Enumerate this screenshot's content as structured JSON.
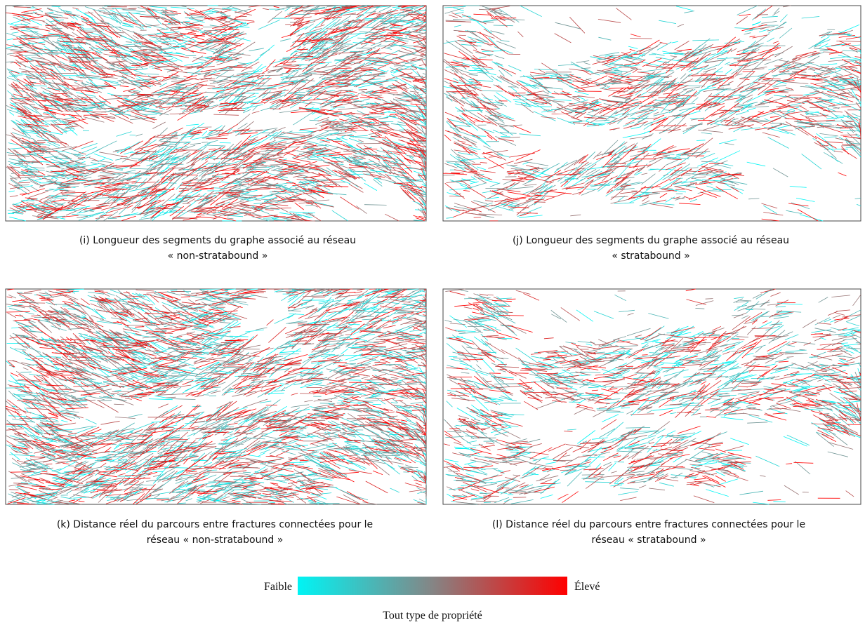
{
  "panels": [
    {
      "caption": [
        "(i) Longueur des segments du graphe associé au réseau",
        "« non-stratabound »"
      ]
    },
    {
      "caption": [
        "(j) Longueur des segments du graphe associé au réseau",
        "« stratabound »"
      ]
    },
    {
      "caption": [
        "(k) Distance réel du parcours entre fractures connectées pour le",
        "réseau « non-stratabound »"
      ]
    },
    {
      "caption": [
        "(l) Distance réel du parcours entre fractures connectées pour le",
        "réseau « stratabound »"
      ]
    }
  ],
  "legend": {
    "low": "Faible",
    "high": "Élevé",
    "title": "Tout type de propriété"
  }
}
